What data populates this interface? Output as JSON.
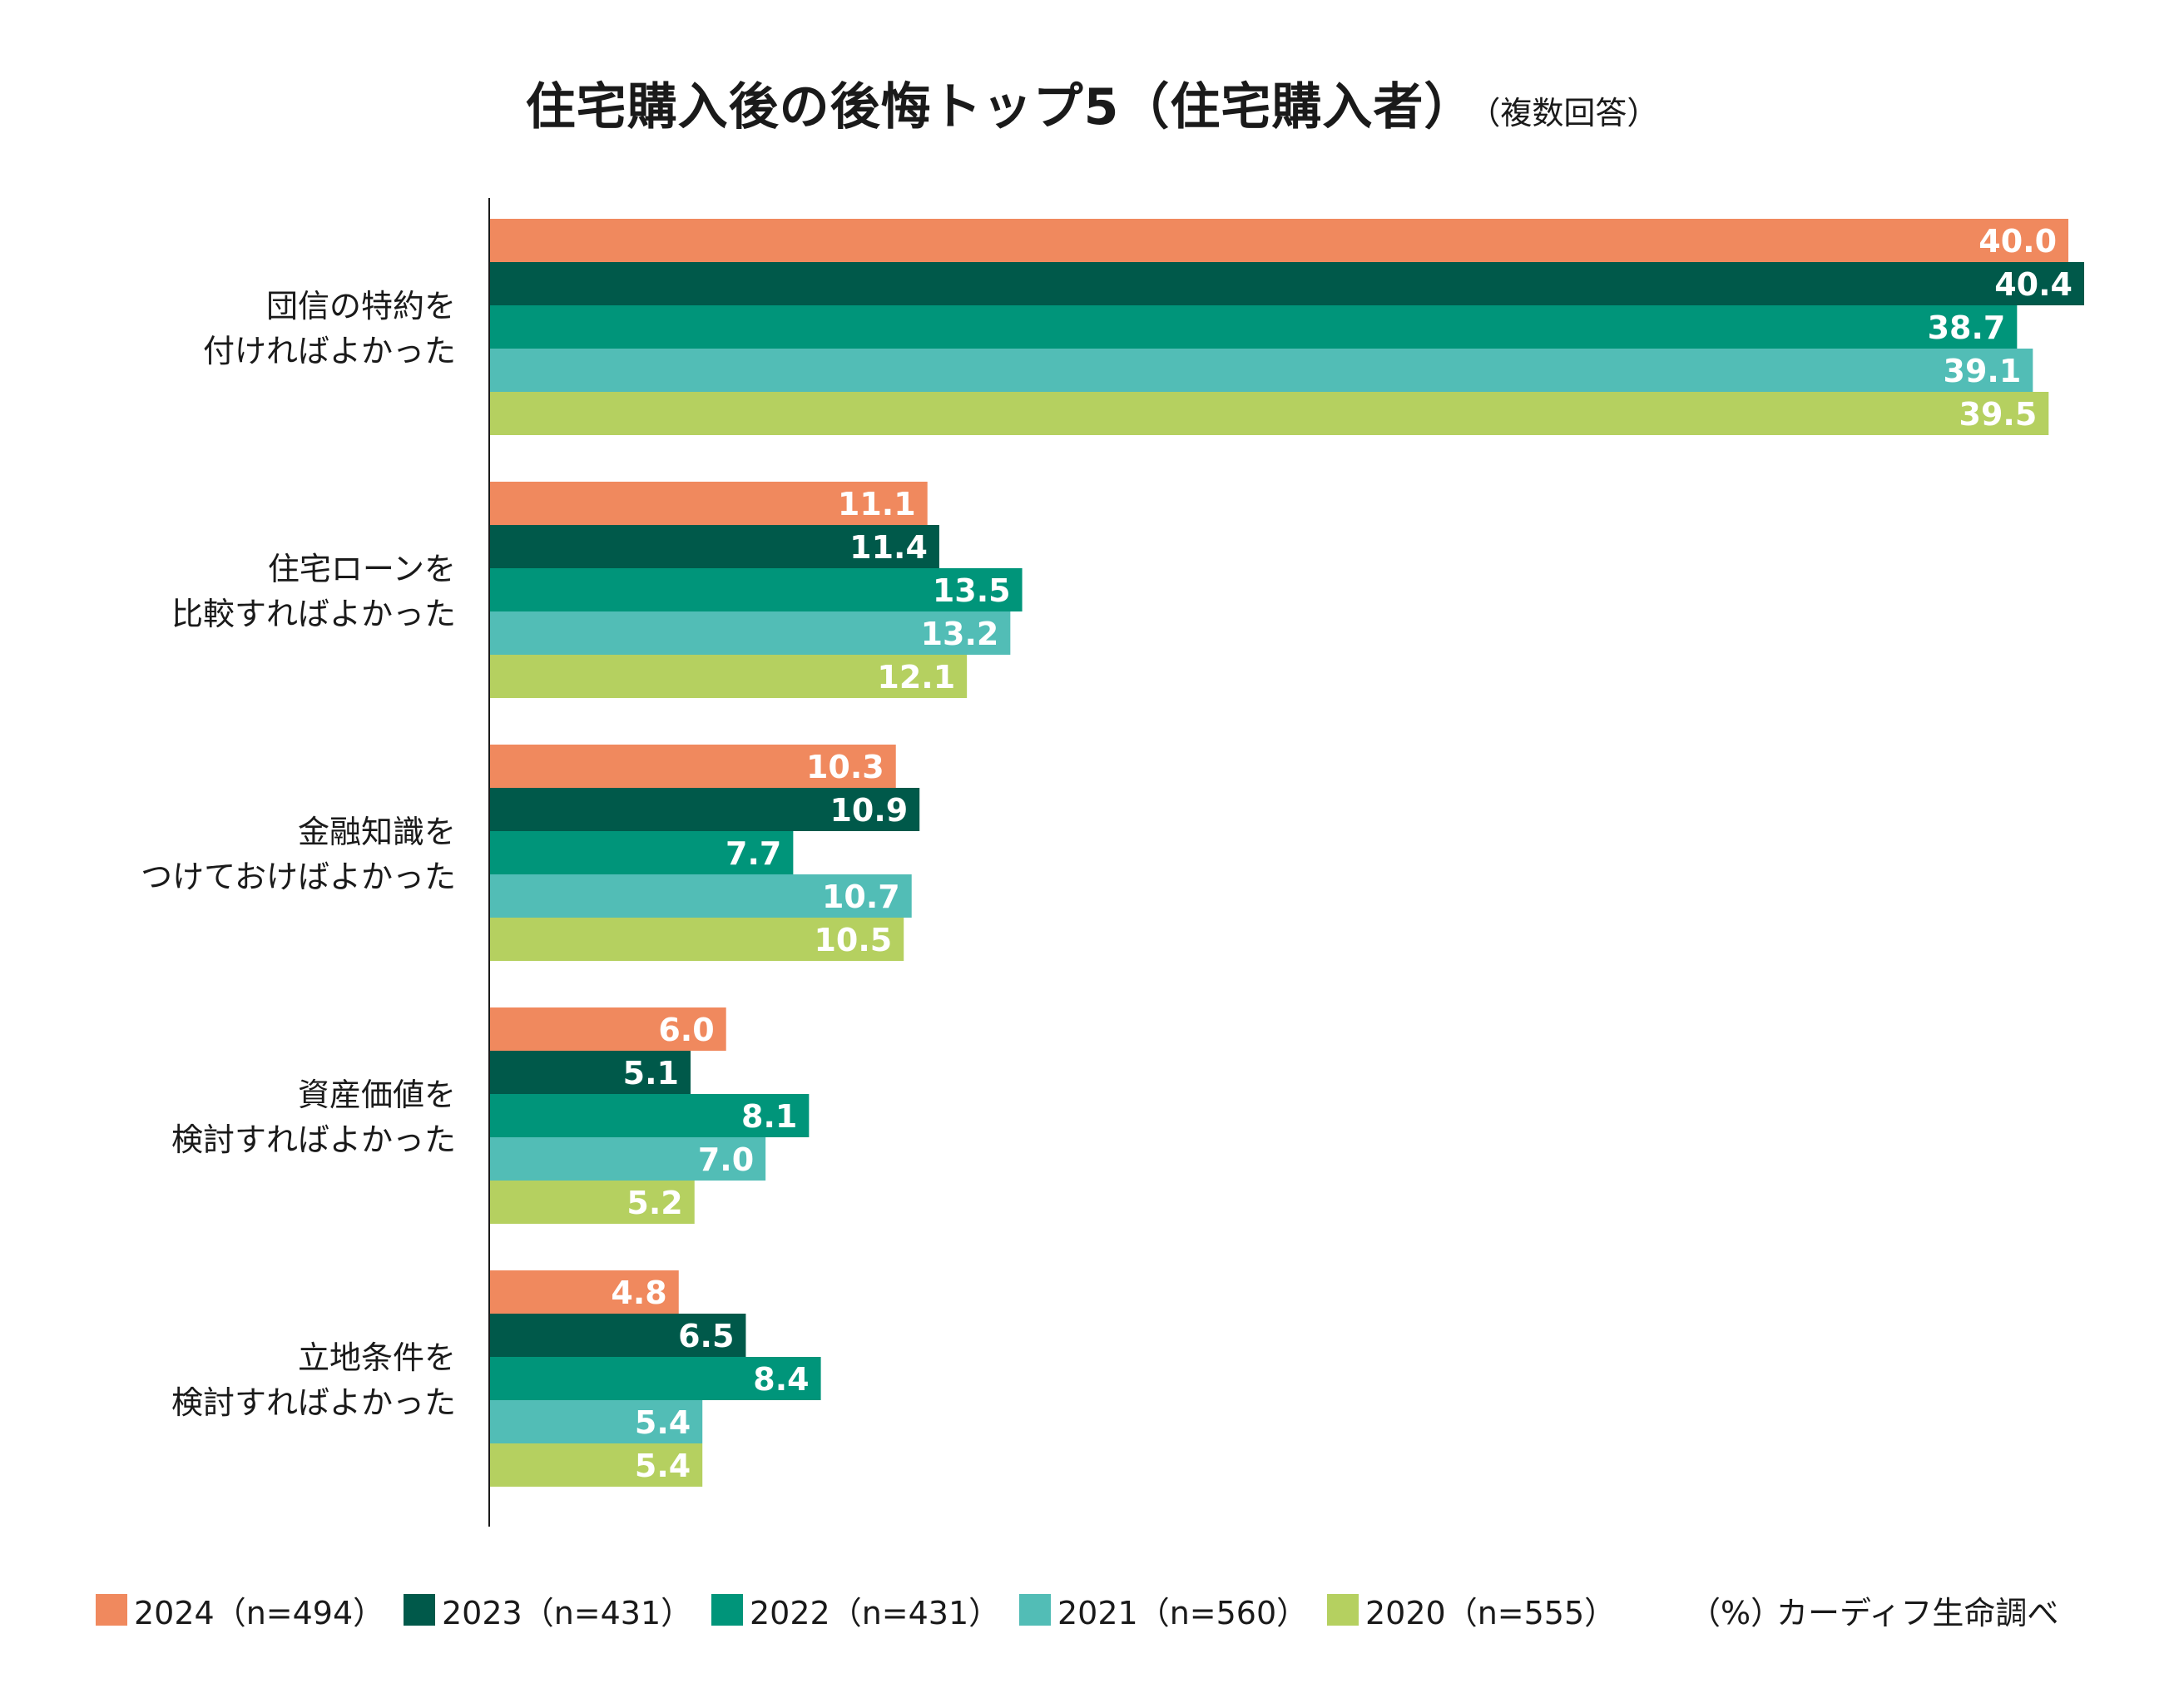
{
  "chart_data": {
    "type": "bar",
    "orientation": "horizontal",
    "title": "住宅購入後の後悔トップ5（住宅購入者）",
    "subtitle": "（複数回答）",
    "unit": "（%）",
    "source": "カーディフ生命調べ",
    "xlim": [
      0,
      40.4
    ],
    "categories": [
      [
        "団信の特約を",
        "付ければよかった"
      ],
      [
        "住宅ローンを",
        "比較すればよかった"
      ],
      [
        "金融知識を",
        "つけておけばよかった"
      ],
      [
        "資産価値を",
        "検討すればよかった"
      ],
      [
        "立地条件を",
        "検討すればよかった"
      ]
    ],
    "series": [
      {
        "name": "2024（n=494）",
        "color": "#F0895E",
        "values": [
          40.0,
          11.1,
          10.3,
          6.0,
          4.8
        ]
      },
      {
        "name": "2023（n=431）",
        "color": "#00594A",
        "values": [
          40.4,
          11.4,
          10.9,
          5.1,
          6.5
        ]
      },
      {
        "name": "2022（n=431）",
        "color": "#00957A",
        "values": [
          38.7,
          13.5,
          7.7,
          8.1,
          8.4
        ]
      },
      {
        "name": "2021（n=560）",
        "color": "#52BDB6",
        "values": [
          39.1,
          13.2,
          10.7,
          7.0,
          5.4
        ]
      },
      {
        "name": "2020（n=555）",
        "color": "#B5D060",
        "values": [
          39.5,
          12.1,
          10.5,
          5.2,
          5.4
        ]
      }
    ],
    "value_labels": [
      [
        "40.0",
        "11.1",
        "10.3",
        "6.0",
        "4.8"
      ],
      [
        "40.4",
        "11.4",
        "10.9",
        "5.1",
        "6.5"
      ],
      [
        "38.7",
        "13.5",
        "7.7",
        "8.1",
        "8.4"
      ],
      [
        "39.1",
        "13.2",
        "10.7",
        "7.0",
        "5.4"
      ],
      [
        "39.5",
        "12.1",
        "10.5",
        "5.2",
        "5.4"
      ]
    ],
    "legend_position": "bottom",
    "grid": false
  }
}
